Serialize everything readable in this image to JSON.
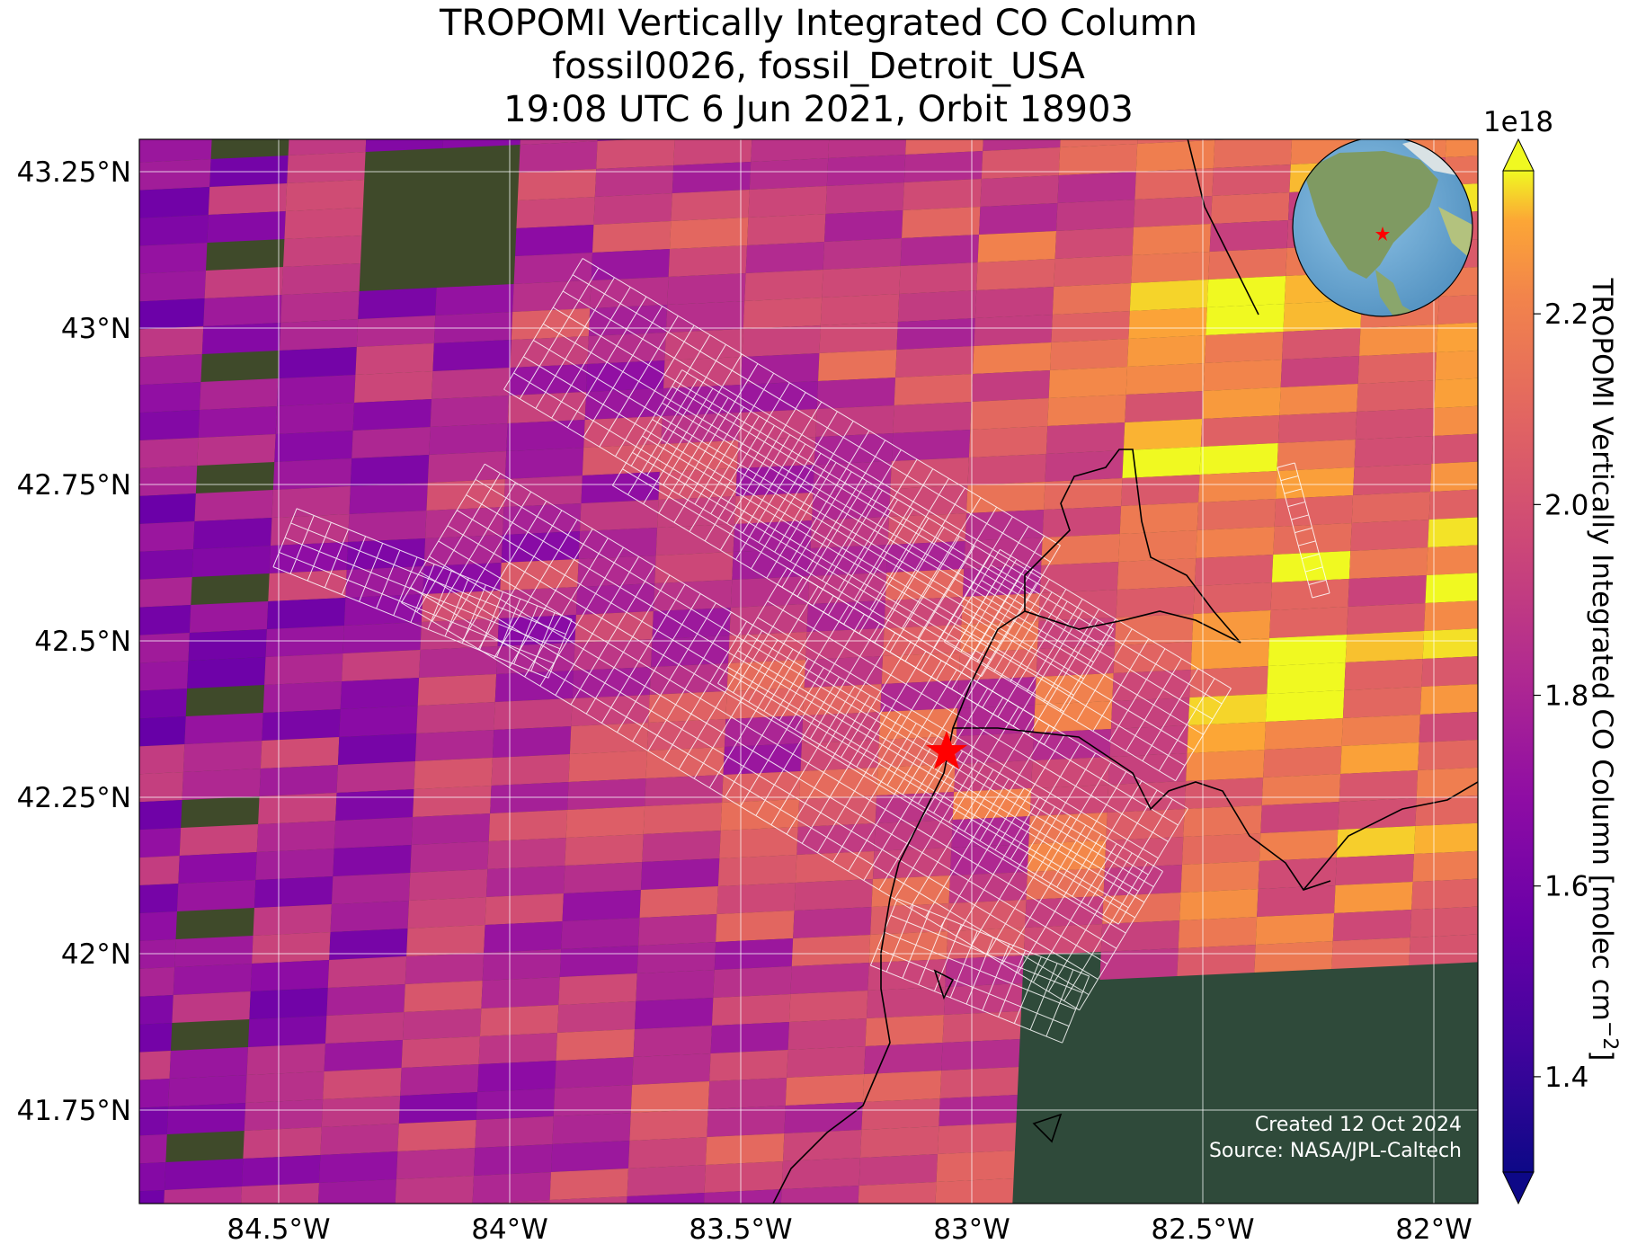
{
  "title": {
    "line1": "TROPOMI Vertically Integrated CO Column",
    "line2": "fossil0026, fossil_Detroit_USA",
    "line3": "19:08 UTC 6 Jun 2021, Orbit 18903"
  },
  "map": {
    "lon_range": [
      -84.8,
      -81.9
    ],
    "lat_range": [
      41.6,
      43.3
    ],
    "lon_ticks": [
      {
        "value": -84.5,
        "label": "84.5°W"
      },
      {
        "value": -84.0,
        "label": "84°W"
      },
      {
        "value": -83.5,
        "label": "83.5°W"
      },
      {
        "value": -83.0,
        "label": "83°W"
      },
      {
        "value": -82.5,
        "label": "82.5°W"
      },
      {
        "value": -82.0,
        "label": "82°W"
      }
    ],
    "lat_ticks": [
      {
        "value": 43.25,
        "label": "43.25°N"
      },
      {
        "value": 43.0,
        "label": "43°N"
      },
      {
        "value": 42.75,
        "label": "42.75°N"
      },
      {
        "value": 42.5,
        "label": "42.5°N"
      },
      {
        "value": 42.25,
        "label": "42.25°N"
      },
      {
        "value": 42.0,
        "label": "42°N"
      },
      {
        "value": 41.75,
        "label": "41.75°N"
      }
    ],
    "gridlines": true,
    "target": {
      "name": "fossil_Detroit_USA",
      "lon": -83.05,
      "lat": 42.33,
      "marker": "red-star"
    },
    "inset_globe": {
      "position": "top-right",
      "marker": "red-star"
    }
  },
  "colorbar": {
    "label": "TROPOMI Vertically Integrated CO Column [molec cm$^{-2}$]",
    "label_text": "TROPOMI Vertically Integrated CO Column [molec cm",
    "label_exponent": "−2",
    "label_close": "]",
    "multiplier": "1e18",
    "colormap": "plasma",
    "range": [
      1.3,
      2.35
    ],
    "extend": "both",
    "ticks": [
      "1.4",
      "1.6",
      "1.8",
      "2.0",
      "2.2"
    ]
  },
  "credits": {
    "created": "Created 12 Oct 2024",
    "source": "Source: NASA/JPL-Caltech"
  }
}
